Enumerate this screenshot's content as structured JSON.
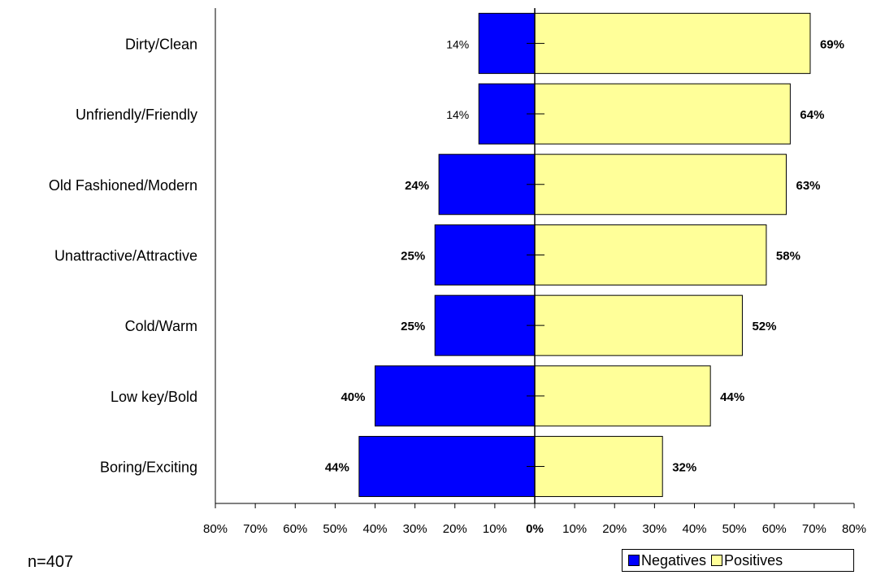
{
  "colors": {
    "negatives": "#0000ff",
    "positives": "#ffff99"
  },
  "note": "n=407",
  "legend": {
    "negatives_label": "Negatives",
    "positives_label": "Positives"
  },
  "chart_data": {
    "type": "bar",
    "orientation": "horizontal-diverging",
    "categories": [
      "Dirty/Clean",
      "Unfriendly/Friendly",
      "Old Fashioned/Modern",
      "Unattractive/Attractive",
      "Cold/Warm",
      "Low key/Bold",
      "Boring/Exciting"
    ],
    "series": [
      {
        "name": "Negatives",
        "values": [
          14,
          14,
          24,
          25,
          25,
          40,
          44
        ],
        "labels": [
          "14%",
          "14%",
          "24%",
          "25%",
          "25%",
          "40%",
          "44%"
        ]
      },
      {
        "name": "Positives",
        "values": [
          69,
          64,
          63,
          58,
          52,
          44,
          32
        ],
        "labels": [
          "69%",
          "64%",
          "63%",
          "58%",
          "52%",
          "44%",
          "32%"
        ]
      }
    ],
    "xlim": [
      -80,
      80
    ],
    "xticks": [
      "80%",
      "70%",
      "60%",
      "50%",
      "40%",
      "30%",
      "20%",
      "10%",
      "0%",
      "10%",
      "20%",
      "30%",
      "40%",
      "50%",
      "60%",
      "70%",
      "80%"
    ],
    "legend_position": "bottom-right",
    "grid": false
  }
}
